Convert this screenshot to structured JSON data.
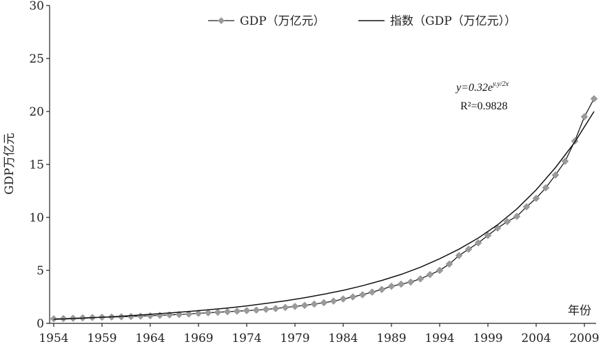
{
  "chart_data": {
    "type": "line",
    "title": "",
    "xlabel": "年份",
    "ylabel": "GDP万亿元",
    "xlim": [
      1954,
      2010
    ],
    "ylim": [
      0,
      30
    ],
    "x_ticks": [
      1954,
      1959,
      1964,
      1969,
      1974,
      1979,
      1984,
      1989,
      1994,
      1999,
      2004,
      2009
    ],
    "y_ticks": [
      0,
      5,
      10,
      15,
      20,
      25,
      30
    ],
    "legend": {
      "placement": "top"
    },
    "grid": false,
    "series": [
      {
        "name": "GDP（万亿元）",
        "style": "line-with-diamond-markers",
        "color": "#9a9a9a",
        "line_color": "#1a1a1a",
        "x": [
          1954,
          1955,
          1956,
          1957,
          1958,
          1959,
          1960,
          1961,
          1962,
          1963,
          1964,
          1965,
          1966,
          1967,
          1968,
          1969,
          1970,
          1971,
          1972,
          1973,
          1974,
          1975,
          1976,
          1977,
          1978,
          1979,
          1980,
          1981,
          1982,
          1983,
          1984,
          1985,
          1986,
          1987,
          1988,
          1989,
          1990,
          1991,
          1992,
          1993,
          1994,
          1995,
          1996,
          1997,
          1998,
          1999,
          2000,
          2001,
          2002,
          2003,
          2004,
          2005,
          2006,
          2007,
          2008,
          2009,
          2010
        ],
        "values": [
          0.43,
          0.45,
          0.48,
          0.52,
          0.55,
          0.58,
          0.6,
          0.62,
          0.65,
          0.68,
          0.72,
          0.76,
          0.8,
          0.84,
          0.88,
          0.95,
          1.0,
          1.05,
          1.1,
          1.15,
          1.2,
          1.25,
          1.32,
          1.4,
          1.5,
          1.6,
          1.7,
          1.82,
          1.95,
          2.1,
          2.3,
          2.5,
          2.7,
          2.95,
          3.2,
          3.5,
          3.7,
          3.9,
          4.2,
          4.6,
          5.0,
          5.6,
          6.4,
          7.0,
          7.6,
          8.3,
          9.0,
          9.6,
          10.1,
          11.0,
          11.8,
          12.8,
          14.0,
          15.3,
          17.2,
          19.5,
          21.2
        ]
      },
      {
        "name": "指数（GDP（万亿元））",
        "style": "line",
        "color": "#111111",
        "x": [
          1954,
          1956,
          1958,
          1960,
          1962,
          1964,
          1966,
          1968,
          1970,
          1972,
          1974,
          1976,
          1978,
          1980,
          1982,
          1984,
          1986,
          1988,
          1990,
          1992,
          1994,
          1996,
          1998,
          2000,
          2002,
          2004,
          2006,
          2008,
          2010
        ],
        "values": [
          0.38,
          0.45,
          0.53,
          0.62,
          0.73,
          0.85,
          0.98,
          1.12,
          1.28,
          1.45,
          1.65,
          1.88,
          2.13,
          2.42,
          2.75,
          3.12,
          3.55,
          4.05,
          4.62,
          5.3,
          6.1,
          7.0,
          8.05,
          9.3,
          10.8,
          12.6,
          14.7,
          17.1,
          20.0
        ]
      }
    ],
    "annotation": {
      "equation": "y=0.32e",
      "equation_exp": "y.y/2x",
      "r_squared": "R²=0.9828"
    }
  }
}
